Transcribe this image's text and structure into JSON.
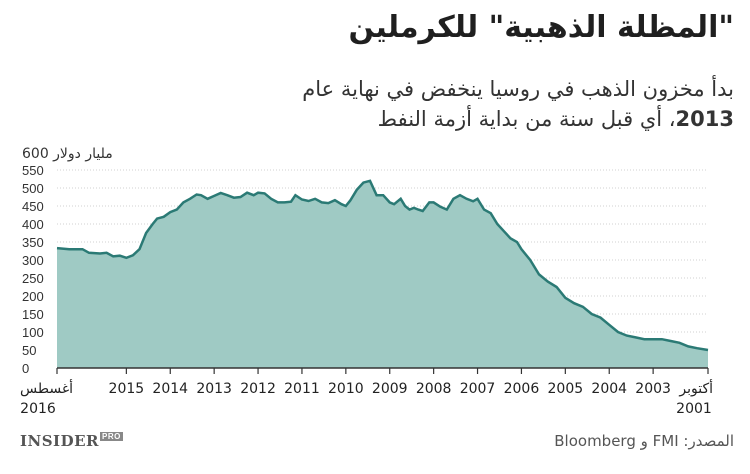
{
  "header": {
    "title": "\"المظلة الذهبية\" للكرملين",
    "subtitle_line1": "بدأ مخزون الذهب في روسيا ينخفض في نهاية عام",
    "subtitle_year": "2013",
    "subtitle_line2_rest": "، أي قبل سنة من بداية أزمة النفط"
  },
  "footer": {
    "brand": "INSIDER",
    "brand_badge": "PRO",
    "source": "المصدر: FMI و Bloomberg"
  },
  "colors": {
    "area_fill": "#9fcac4",
    "line": "#2b7a75",
    "grid": "#d0d0d0",
    "axis": "#333333"
  },
  "chart_data": {
    "type": "area",
    "ylabel": "600 مليار دولار",
    "ylim": [
      0,
      600
    ],
    "y_ticks": [
      0,
      50,
      100,
      150,
      200,
      250,
      300,
      350,
      400,
      450,
      500,
      550
    ],
    "x_axis_direction": "reversed (time runs right to left)",
    "x_ticks": [
      {
        "label": "أغسطس",
        "label2": "2016",
        "x": 2016.58
      },
      {
        "label": "2015",
        "x": 2015.0
      },
      {
        "label": "2014",
        "x": 2014.0
      },
      {
        "label": "2013",
        "x": 2013.0
      },
      {
        "label": "2012",
        "x": 2012.0
      },
      {
        "label": "2011",
        "x": 2011.0
      },
      {
        "label": "2010",
        "x": 2010.0
      },
      {
        "label": "2009",
        "x": 2009.0
      },
      {
        "label": "2008",
        "x": 2008.0
      },
      {
        "label": "2007",
        "x": 2007.0
      },
      {
        "label": "2006",
        "x": 2006.0
      },
      {
        "label": "2005",
        "x": 2005.0
      },
      {
        "label": "2004",
        "x": 2004.0
      },
      {
        "label": "2003",
        "x": 2003.0
      },
      {
        "label": "أكتوبر",
        "label2": "2001",
        "x": 2001.75
      }
    ],
    "x_range": [
      2001.75,
      2016.58
    ],
    "series": [
      {
        "x": [
          2016.58,
          2016.3,
          2016.0,
          2015.85,
          2015.6,
          2015.45,
          2015.3,
          2015.15,
          2015.0,
          2014.85,
          2014.7,
          2014.55,
          2014.4,
          2014.3,
          2014.15,
          2014.0,
          2013.85,
          2013.7,
          2013.55,
          2013.4,
          2013.3,
          2013.15,
          2013.0,
          2012.85,
          2012.7,
          2012.55,
          2012.4,
          2012.25,
          2012.1,
          2012.0,
          2011.85,
          2011.7,
          2011.55,
          2011.4,
          2011.25,
          2011.15,
          2011.0,
          2010.85,
          2010.7,
          2010.55,
          2010.4,
          2010.25,
          2010.1,
          2010.0,
          2009.9,
          2009.75,
          2009.6,
          2009.45,
          2009.3,
          2009.15,
          2009.0,
          2008.9,
          2008.75,
          2008.65,
          2008.55,
          2008.45,
          2008.35,
          2008.25,
          2008.1,
          2008.0,
          2007.85,
          2007.7,
          2007.55,
          2007.4,
          2007.25,
          2007.1,
          2007.0,
          2006.85,
          2006.7,
          2006.55,
          2006.4,
          2006.25,
          2006.1,
          2006.0,
          2005.8,
          2005.6,
          2005.4,
          2005.2,
          2005.0,
          2004.8,
          2004.6,
          2004.4,
          2004.2,
          2004.0,
          2003.8,
          2003.6,
          2003.4,
          2003.2,
          2003.0,
          2002.8,
          2002.6,
          2002.4,
          2002.2,
          2002.0,
          2001.75
        ],
        "values": [
          333,
          330,
          330,
          320,
          318,
          320,
          310,
          312,
          306,
          313,
          330,
          375,
          400,
          415,
          420,
          433,
          440,
          460,
          470,
          482,
          480,
          470,
          478,
          486,
          480,
          473,
          475,
          487,
          480,
          487,
          485,
          470,
          460,
          460,
          462,
          480,
          468,
          464,
          470,
          460,
          458,
          466,
          455,
          450,
          465,
          495,
          515,
          520,
          480,
          480,
          460,
          455,
          470,
          450,
          440,
          445,
          440,
          436,
          460,
          460,
          448,
          440,
          470,
          480,
          470,
          463,
          470,
          440,
          430,
          400,
          380,
          360,
          350,
          330,
          300,
          260,
          240,
          225,
          195,
          180,
          170,
          150,
          140,
          120,
          100,
          90,
          85,
          80,
          80,
          80,
          75,
          70,
          60,
          55,
          50
        ]
      }
    ]
  }
}
